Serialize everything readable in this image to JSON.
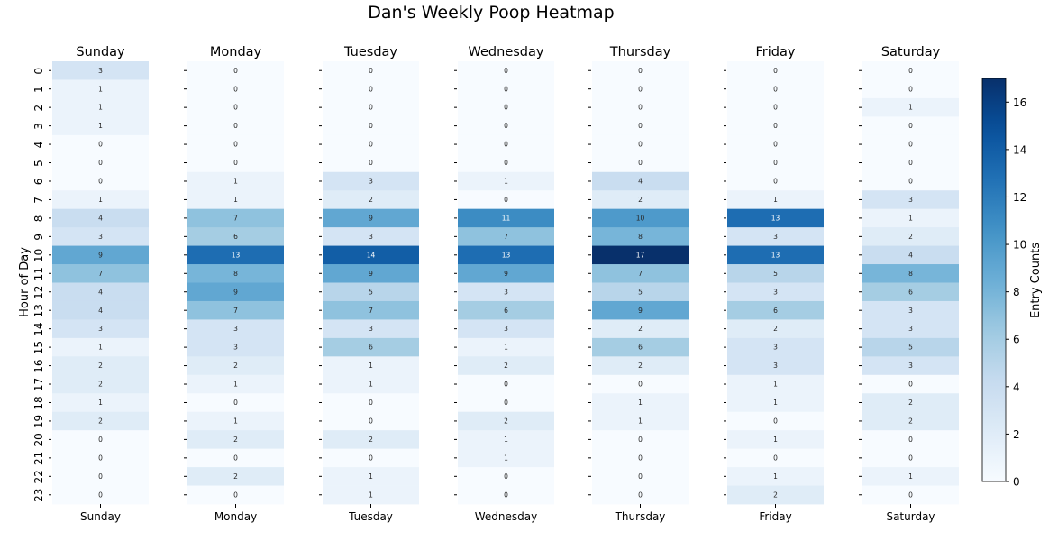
{
  "chart_data": {
    "type": "heatmap",
    "title": "Dan's Weekly Poop Heatmap",
    "ylabel": "Hour of Day",
    "colorbar_label": "Entry Counts",
    "colorbar_ticks": [
      0,
      2,
      4,
      6,
      8,
      10,
      12,
      14,
      16
    ],
    "color_range": [
      0,
      17
    ],
    "colormap": "Blues",
    "hours": [
      0,
      1,
      2,
      3,
      4,
      5,
      6,
      7,
      8,
      9,
      10,
      11,
      12,
      13,
      14,
      15,
      16,
      17,
      18,
      19,
      20,
      21,
      22,
      23
    ],
    "days": [
      {
        "name": "Sunday",
        "values": [
          3,
          1,
          1,
          1,
          0,
          0,
          0,
          1,
          4,
          3,
          9,
          7,
          4,
          4,
          3,
          1,
          2,
          2,
          1,
          2,
          0,
          0,
          0,
          0
        ]
      },
      {
        "name": "Monday",
        "values": [
          0,
          0,
          0,
          0,
          0,
          0,
          1,
          1,
          7,
          6,
          13,
          8,
          9,
          7,
          3,
          3,
          2,
          1,
          0,
          1,
          2,
          0,
          2,
          0
        ]
      },
      {
        "name": "Tuesday",
        "values": [
          0,
          0,
          0,
          0,
          0,
          0,
          3,
          2,
          9,
          3,
          14,
          9,
          5,
          7,
          3,
          6,
          1,
          1,
          0,
          0,
          2,
          0,
          1,
          1
        ]
      },
      {
        "name": "Wednesday",
        "values": [
          0,
          0,
          0,
          0,
          0,
          0,
          1,
          0,
          11,
          7,
          13,
          9,
          3,
          6,
          3,
          1,
          2,
          0,
          0,
          2,
          1,
          1,
          0,
          0
        ]
      },
      {
        "name": "Thursday",
        "values": [
          0,
          0,
          0,
          0,
          0,
          0,
          4,
          2,
          10,
          8,
          17,
          7,
          5,
          9,
          2,
          6,
          2,
          0,
          1,
          1,
          0,
          0,
          0,
          0
        ]
      },
      {
        "name": "Friday",
        "values": [
          0,
          0,
          0,
          0,
          0,
          0,
          0,
          1,
          13,
          3,
          13,
          5,
          3,
          6,
          2,
          3,
          3,
          1,
          1,
          0,
          1,
          0,
          1,
          2
        ]
      },
      {
        "name": "Saturday",
        "values": [
          0,
          0,
          1,
          0,
          0,
          0,
          0,
          3,
          1,
          2,
          4,
          8,
          6,
          3,
          3,
          5,
          3,
          0,
          2,
          2,
          0,
          0,
          1,
          0
        ]
      }
    ]
  }
}
